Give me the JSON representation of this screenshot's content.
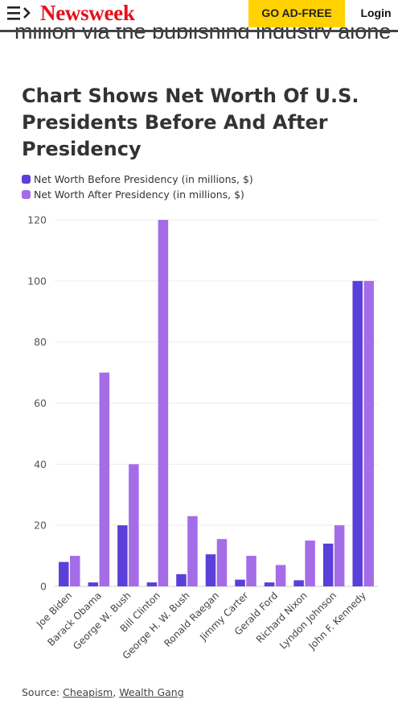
{
  "header": {
    "logo": "Newsweek",
    "ad_free_label": "GO AD-FREE",
    "login_label": "Login"
  },
  "article": {
    "cut_text": "million via the publishing industry alone."
  },
  "chart_data": {
    "type": "bar",
    "title": "Chart Shows Net Worth Of U.S. Presidents Before And After Presidency",
    "categories": [
      "Joe Biden",
      "Barack Obama",
      "George W. Bush",
      "Bill Clinton",
      "George H. W. Bush",
      "Ronald Raegan",
      "Jimmy Carter",
      "Gerald Ford",
      "Richard Nixon",
      "Lyndon Johnson",
      "John F. Kennedy"
    ],
    "series": [
      {
        "name": "Net Worth Before Presidency (in millions, $)",
        "color": "#5b3fd9",
        "values": [
          8,
          1.3,
          20,
          1.3,
          4,
          10.5,
          2.2,
          1.3,
          2,
          14,
          100
        ]
      },
      {
        "name": "Net Worth After Presidency (in millions, $)",
        "color": "#a56ce8",
        "values": [
          10,
          70,
          40,
          120,
          23,
          15.5,
          10,
          7,
          15,
          20,
          100
        ]
      }
    ],
    "ylim": [
      0,
      120
    ],
    "yticks": [
      0,
      20,
      40,
      60,
      80,
      100,
      120
    ],
    "grid": true,
    "legend_position": "top-left"
  },
  "source": {
    "label": "Source:",
    "links": [
      "Cheapism",
      "Wealth Gang"
    ]
  }
}
